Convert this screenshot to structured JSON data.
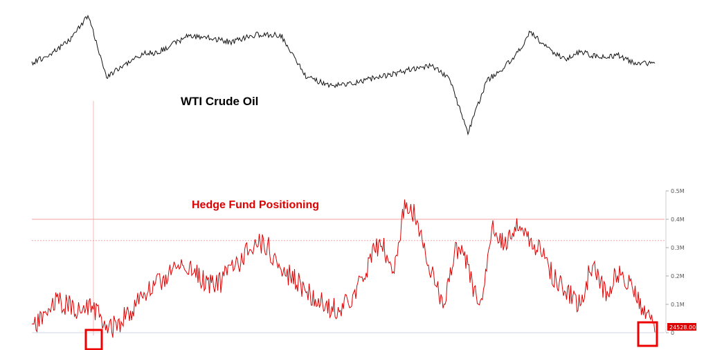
{
  "colors": {
    "wti_line": "#111111",
    "hf_line": "#dd0000",
    "reference_line": "#f2a0a0",
    "marker_box": "#ee0000",
    "last_value_bg": "#dd0000"
  },
  "chart_data": [
    {
      "type": "line",
      "title": "WTI Crude Oil",
      "xlabel": "",
      "ylabel": "",
      "y_axis_visible": false,
      "grid": false,
      "x": [
        0,
        3,
        6,
        9,
        12,
        15,
        18,
        20,
        22,
        25,
        28,
        32,
        36,
        40,
        44,
        48,
        52,
        55,
        58,
        61,
        64,
        67,
        70,
        73,
        76,
        78,
        80,
        82,
        84,
        86,
        88,
        90,
        92,
        94,
        96,
        98,
        100
      ],
      "series": [
        {
          "values": [
            0.36,
            0.48,
            0.66,
            1.0,
            0.18,
            0.34,
            0.49,
            0.5,
            0.58,
            0.72,
            0.7,
            0.64,
            0.74,
            0.73,
            0.18,
            0.05,
            0.1,
            0.16,
            0.21,
            0.28,
            0.33,
            0.16,
            -0.58,
            0.12,
            0.32,
            0.5,
            0.78,
            0.62,
            0.47,
            0.42,
            0.51,
            0.46,
            0.43,
            0.47,
            0.38,
            0.36,
            0.34
          ]
        }
      ]
    },
    {
      "type": "line",
      "title": "Hedge Fund Positioning",
      "xlabel": "",
      "ylabel": "",
      "ylim": [
        0,
        500000
      ],
      "ticks": [
        {
          "label": "0",
          "value": 0
        },
        {
          "label": "0.1M",
          "value": 100000
        },
        {
          "label": "0.2M",
          "value": 200000
        },
        {
          "label": "0.3M",
          "value": 300000
        },
        {
          "label": "0.4M",
          "value": 400000
        },
        {
          "label": "0.5M",
          "value": 500000
        }
      ],
      "reference_lines": [
        400000,
        325000
      ],
      "last_value_label": "24528.00",
      "x": [
        0,
        2,
        4,
        6,
        8,
        10,
        12,
        14,
        16,
        18,
        20,
        22,
        24,
        26,
        28,
        30,
        32,
        34,
        36,
        38,
        40,
        42,
        44,
        46,
        48,
        50,
        52,
        54,
        56,
        58,
        60,
        62,
        64,
        66,
        68,
        70,
        72,
        74,
        76,
        78,
        80,
        82,
        84,
        86,
        88,
        90,
        92,
        94,
        96,
        98,
        100
      ],
      "series": [
        {
          "values": [
            10000,
            60000,
            110000,
            95000,
            75000,
            90000,
            5000,
            35000,
            80000,
            140000,
            165000,
            210000,
            240000,
            215000,
            180000,
            170000,
            225000,
            265000,
            325000,
            300000,
            220000,
            195000,
            150000,
            115000,
            85000,
            90000,
            140000,
            240000,
            330000,
            200000,
            470000,
            390000,
            215000,
            95000,
            310000,
            230000,
            75000,
            360000,
            320000,
            380000,
            335000,
            270000,
            190000,
            145000,
            100000,
            250000,
            140000,
            210000,
            185000,
            90000,
            24528
          ]
        }
      ]
    }
  ]
}
